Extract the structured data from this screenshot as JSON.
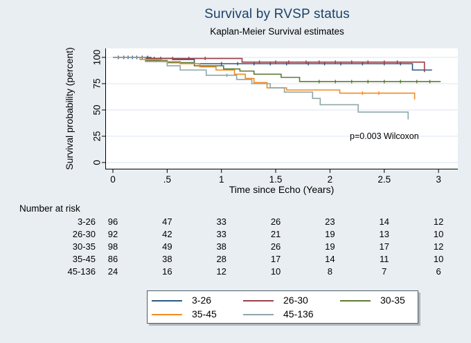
{
  "chart_data": {
    "type": "line",
    "subtype": "kaplan-meier-step",
    "title": "Survival by RVSP status",
    "subtitle": "Kaplan-Meier Survival estimates",
    "annotation": "p=0.003 Wilcoxon",
    "xlabel": "Time since Echo (Years)",
    "ylabel": "Survival probability (percent)",
    "xlim": [
      0,
      3.05
    ],
    "ylim": [
      0,
      105
    ],
    "grid": true,
    "gridline_color": "#d9e6f0",
    "plot_background": "#ffffff",
    "figure_background": "#e8eef2",
    "title_color": "#1d4169",
    "legend_position": "bottom",
    "x_ticks": [
      "0",
      ".5",
      "1",
      "1.5",
      "2",
      "2.5",
      "3"
    ],
    "x_tick_values": [
      0,
      0.5,
      1,
      1.5,
      2,
      2.5,
      3
    ],
    "y_ticks": [
      "0",
      "25",
      "50",
      "75",
      "100"
    ],
    "y_tick_values": [
      0,
      25,
      50,
      75,
      100
    ],
    "series": [
      {
        "name": "3-26",
        "color": "#2b5884",
        "steps": [
          [
            0,
            100
          ],
          [
            0.35,
            99
          ],
          [
            0.55,
            98
          ],
          [
            0.75,
            94
          ],
          [
            2.76,
            88
          ]
        ],
        "end_t": 2.94,
        "censor_t": [
          0.05,
          0.1,
          0.14,
          0.18,
          0.22,
          0.27,
          0.32,
          0.38,
          0.44,
          1.0,
          1.15,
          1.3,
          1.45,
          1.6,
          1.8,
          1.95,
          2.1,
          2.3,
          2.5,
          2.65
        ]
      },
      {
        "name": "26-30",
        "color": "#9c3d47",
        "steps": [
          [
            0,
            100
          ],
          [
            0.3,
            99
          ],
          [
            1.19,
            95.5
          ],
          [
            2.87,
            86
          ]
        ],
        "end_t": 2.87,
        "censor_t": [
          0.55,
          0.7,
          0.85,
          1.35,
          1.5,
          1.62,
          1.78,
          1.9,
          2.05,
          2.2,
          2.35,
          2.5,
          2.62
        ]
      },
      {
        "name": "30-35",
        "color": "#5e7a35",
        "steps": [
          [
            0,
            100
          ],
          [
            0.3,
            97
          ],
          [
            0.5,
            95
          ],
          [
            0.75,
            92
          ],
          [
            1.02,
            89
          ],
          [
            1.17,
            87
          ],
          [
            1.3,
            84
          ],
          [
            1.55,
            81
          ],
          [
            1.72,
            77
          ]
        ],
        "end_t": 3.02,
        "censor_t": [
          0.4,
          0.62,
          1.9,
          2.05,
          2.2,
          2.35,
          2.5,
          2.65,
          2.8,
          2.92
        ]
      },
      {
        "name": "35-45",
        "color": "#f18b1f",
        "steps": [
          [
            0,
            100
          ],
          [
            0.25,
            98
          ],
          [
            0.45,
            96
          ],
          [
            0.62,
            94
          ],
          [
            0.8,
            91
          ],
          [
            0.95,
            88
          ],
          [
            1.12,
            84
          ],
          [
            1.22,
            80
          ],
          [
            1.3,
            76
          ],
          [
            1.42,
            71
          ],
          [
            1.6,
            69
          ],
          [
            2.09,
            66
          ],
          [
            2.78,
            60
          ]
        ],
        "end_t": 2.78,
        "censor_t": [
          2.3,
          2.45
        ]
      },
      {
        "name": "45-136",
        "color": "#8da5aa",
        "steps": [
          [
            0,
            100
          ],
          [
            0.3,
            96
          ],
          [
            0.5,
            92
          ],
          [
            0.62,
            88
          ],
          [
            0.86,
            83
          ],
          [
            1.14,
            79
          ],
          [
            1.28,
            75
          ],
          [
            1.45,
            71
          ],
          [
            1.58,
            67
          ],
          [
            1.84,
            61
          ],
          [
            1.91,
            55
          ],
          [
            2.26,
            48
          ],
          [
            2.72,
            41
          ]
        ],
        "end_t": 2.72,
        "censor_t": [
          1.05
        ]
      }
    ]
  },
  "risk_table": {
    "header": "Number at risk",
    "time_points": [
      0,
      0.5,
      1,
      1.5,
      2,
      2.5,
      3
    ],
    "rows": [
      {
        "label": "3-26",
        "counts": [
          96,
          47,
          33,
          26,
          23,
          14,
          12
        ]
      },
      {
        "label": "26-30",
        "counts": [
          92,
          42,
          33,
          21,
          19,
          13,
          10
        ]
      },
      {
        "label": "30-35",
        "counts": [
          98,
          49,
          38,
          26,
          19,
          17,
          12
        ]
      },
      {
        "label": "35-45",
        "counts": [
          86,
          38,
          28,
          17,
          14,
          11,
          10
        ]
      },
      {
        "label": "45-136",
        "counts": [
          24,
          16,
          12,
          10,
          8,
          7,
          6
        ]
      }
    ]
  },
  "legend": {
    "items": [
      {
        "label": "3-26",
        "color": "#2b5884"
      },
      {
        "label": "26-30",
        "color": "#9c3d47"
      },
      {
        "label": "30-35",
        "color": "#5e7a35"
      },
      {
        "label": "35-45",
        "color": "#f18b1f"
      },
      {
        "label": "45-136",
        "color": "#8da5aa"
      }
    ]
  }
}
